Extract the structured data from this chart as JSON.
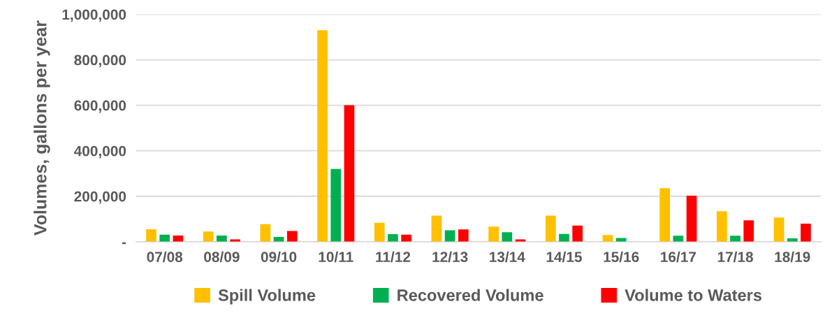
{
  "chart_data": {
    "type": "bar",
    "ylabel": "Volumes, gallons per year",
    "categories": [
      "07/08",
      "08/09",
      "09/10",
      "10/11",
      "11/12",
      "12/13",
      "13/14",
      "14/15",
      "15/16",
      "16/17",
      "17/18",
      "18/19"
    ],
    "series": [
      {
        "name": "Spill Volume",
        "color": "#ffc000",
        "values": [
          55000,
          45000,
          77000,
          930000,
          83000,
          115000,
          66000,
          115000,
          29000,
          235000,
          134000,
          106000
        ]
      },
      {
        "name": "Recovered Volume",
        "color": "#00b050",
        "values": [
          31000,
          27000,
          21000,
          320000,
          33000,
          50000,
          42000,
          34000,
          16000,
          26000,
          26000,
          15000
        ]
      },
      {
        "name": "Volume to Waters",
        "color": "#ff0000",
        "values": [
          27000,
          10000,
          47000,
          600000,
          31000,
          54000,
          10000,
          71000,
          0,
          202000,
          94000,
          79000
        ]
      }
    ],
    "ylim": [
      0,
      1000000
    ],
    "yticks": [
      {
        "value": 0,
        "label": "-"
      },
      {
        "value": 200000,
        "label": "200,000"
      },
      {
        "value": 400000,
        "label": "400,000"
      },
      {
        "value": 600000,
        "label": "600,000"
      },
      {
        "value": 800000,
        "label": "800,000"
      },
      {
        "value": 1000000,
        "label": "1,000,000"
      }
    ],
    "grid": "y",
    "legend": "bottom"
  }
}
